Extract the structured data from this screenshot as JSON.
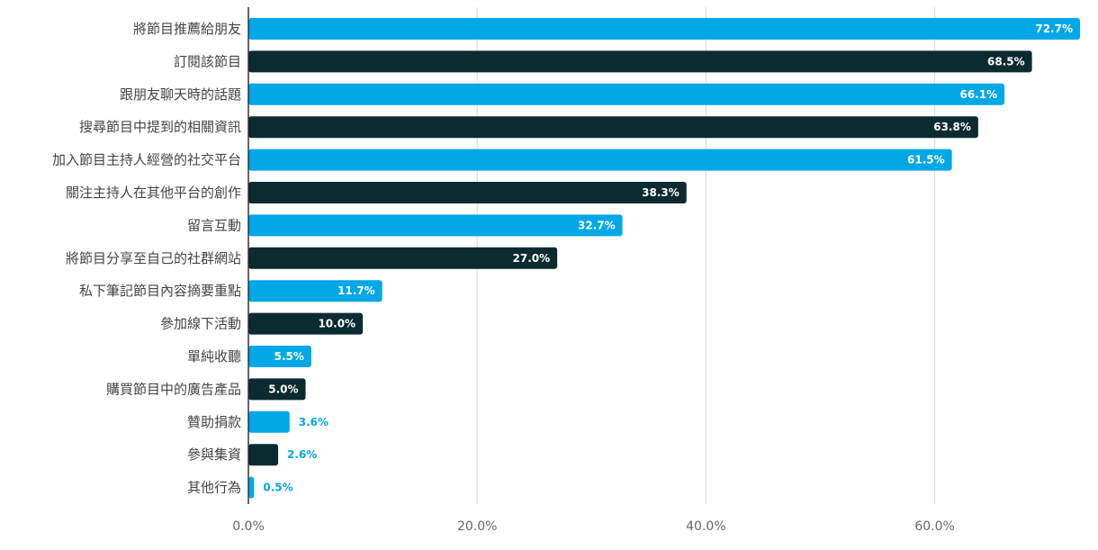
{
  "chart_data": {
    "type": "bar",
    "orientation": "horizontal",
    "categories": [
      "將節目推薦給朋友",
      "訂閱該節目",
      "跟朋友聊天時的話題",
      "搜尋節目中提到的相關資訊",
      "加入節目主持人經營的社交平台",
      "關注主持人在其他平台的創作",
      "留言互動",
      "將節目分享至自己的社群網站",
      "私下筆記節目內容摘要重點",
      "參加線下活動",
      "單純收聽",
      "購買節目中的廣告產品",
      "贊助捐款",
      "參與集資",
      "其他行為"
    ],
    "values": [
      72.7,
      68.5,
      66.1,
      63.8,
      61.5,
      38.3,
      32.7,
      27.0,
      11.7,
      10.0,
      5.5,
      5.0,
      3.6,
      2.6,
      0.5
    ],
    "value_labels": [
      "72.7%",
      "68.5%",
      "66.1%",
      "63.8%",
      "61.5%",
      "38.3%",
      "32.7%",
      "27.0%",
      "11.7%",
      "10.0%",
      "5.5%",
      "5.0%",
      "3.6%",
      "2.6%",
      "0.5%"
    ],
    "xlim": [
      0,
      72.7
    ],
    "x_ticks": [
      0,
      20,
      40,
      60
    ],
    "x_tick_labels": [
      "0.0%",
      "20.0%",
      "40.0%",
      "60.0%"
    ],
    "title": "",
    "xlabel": "",
    "ylabel": "",
    "grid": true,
    "legend": "none",
    "colors": {
      "bar_odd": "#02a8e6",
      "bar_even": "#0b2b30",
      "label_inside": "#ffffff",
      "label_outside": "#02a8e6",
      "grid": "#d9d9d9",
      "axis": "#333333"
    }
  }
}
